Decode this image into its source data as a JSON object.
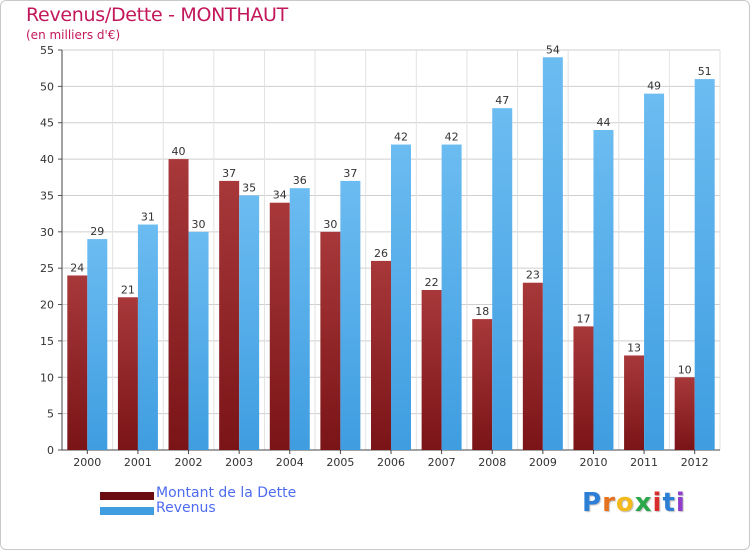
{
  "title": "Revenus/Dette - MONTHAUT",
  "subtitle": "(en milliers d'€)",
  "colors": {
    "title": "#c2185b",
    "debt": "#7a1417",
    "debt_light": "#a8383a",
    "revenue": "#3f9de0",
    "revenue_light": "#6bbcf1",
    "legend_text": "#4f6cf0"
  },
  "legend": [
    {
      "label": "Montant de la Dette",
      "color": "#6b0d10"
    },
    {
      "label": "Revenus",
      "color": "#3f9de0"
    }
  ],
  "logo": {
    "text": "Proxiti",
    "letters": [
      "P",
      "r",
      "o",
      "x",
      "i",
      "t",
      "i"
    ],
    "colors": [
      "#2d7fd6",
      "#e6711f",
      "#f3b91d",
      "#2aa84a",
      "#d92d2d",
      "#2d7fd6",
      "#8f3fc9"
    ]
  },
  "chart_data": {
    "type": "bar",
    "title": "Revenus/Dette - MONTHAUT",
    "subtitle": "(en milliers d'€)",
    "categories": [
      "2000",
      "2001",
      "2002",
      "2003",
      "2004",
      "2005",
      "2006",
      "2007",
      "2008",
      "2009",
      "2010",
      "2011",
      "2012"
    ],
    "series": [
      {
        "name": "Montant de la Dette",
        "values": [
          24,
          21,
          40,
          37,
          34,
          30,
          26,
          22,
          18,
          23,
          17,
          13,
          10
        ]
      },
      {
        "name": "Revenus",
        "values": [
          29,
          31,
          30,
          35,
          36,
          37,
          42,
          42,
          47,
          54,
          44,
          49,
          51
        ]
      }
    ],
    "ylim": [
      0,
      55
    ],
    "yticks": [
      0,
      5,
      10,
      15,
      20,
      25,
      30,
      35,
      40,
      45,
      50,
      55
    ],
    "grid": true,
    "legend_position": "bottom-left"
  }
}
